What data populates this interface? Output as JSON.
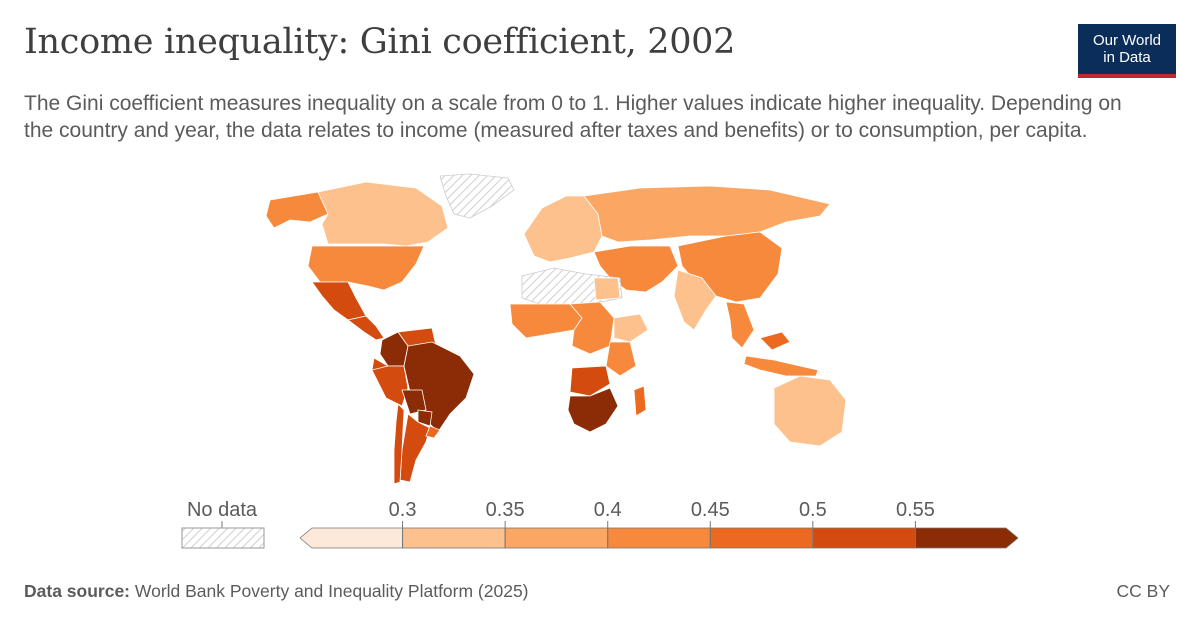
{
  "header": {
    "title": "Income inequality: Gini coefficient, 2002",
    "subtitle": "The Gini coefficient measures inequality on a scale from 0 to 1. Higher values indicate higher inequality. Depending on the country and year, the data relates to income (measured after taxes and benefits) or to consumption, per capita."
  },
  "logo": {
    "line1": "Our World",
    "line2": "in Data"
  },
  "legend": {
    "no_data_label": "No data",
    "ticks": [
      "0.3",
      "0.35",
      "0.4",
      "0.45",
      "0.5",
      "0.55"
    ],
    "colors": [
      "#fde9d9",
      "#fdc18e",
      "#fba763",
      "#f7893d",
      "#ec6a1f",
      "#d34b0e",
      "#8b2c06"
    ],
    "no_data_color": "#e0e0e0"
  },
  "map_data": {
    "type": "choropleth",
    "year": 2002,
    "metric": "Gini coefficient",
    "regions": [
      {
        "name": "Canada",
        "value": 0.33
      },
      {
        "name": "United States",
        "value": 0.41
      },
      {
        "name": "Mexico",
        "value": 0.5
      },
      {
        "name": "Central America",
        "value": 0.53
      },
      {
        "name": "Colombia",
        "value": 0.59
      },
      {
        "name": "Venezuela",
        "value": 0.52
      },
      {
        "name": "Ecuador",
        "value": 0.52
      },
      {
        "name": "Peru",
        "value": 0.53
      },
      {
        "name": "Brazil",
        "value": 0.59
      },
      {
        "name": "Bolivia",
        "value": 0.59
      },
      {
        "name": "Paraguay",
        "value": 0.56
      },
      {
        "name": "Argentina",
        "value": 0.52
      },
      {
        "name": "Chile",
        "value": 0.51
      },
      {
        "name": "Uruguay",
        "value": 0.46
      },
      {
        "name": "Russia",
        "value": 0.36
      },
      {
        "name": "Europe",
        "value": 0.31
      },
      {
        "name": "China",
        "value": 0.42
      },
      {
        "name": "India",
        "value": 0.33
      },
      {
        "name": "Middle East",
        "value": 0.4
      },
      {
        "name": "Egypt",
        "value": 0.32
      },
      {
        "name": "West Africa",
        "value": 0.4
      },
      {
        "name": "Central Africa",
        "value": 0.42
      },
      {
        "name": "Ethiopia",
        "value": 0.3
      },
      {
        "name": "East Africa",
        "value": 0.44
      },
      {
        "name": "Zambia",
        "value": 0.52
      },
      {
        "name": "Southern Africa",
        "value": 0.63
      },
      {
        "name": "South Africa",
        "value": 0.63
      },
      {
        "name": "Madagascar",
        "value": 0.47
      },
      {
        "name": "Southeast Asia",
        "value": 0.4
      },
      {
        "name": "Malaysia",
        "value": 0.46
      },
      {
        "name": "Indonesia",
        "value": 0.4
      },
      {
        "name": "Australia",
        "value": 0.33
      }
    ]
  },
  "footer": {
    "source_label": "Data source:",
    "source_text": "World Bank Poverty and Inequality Platform (2025)",
    "license": "CC BY"
  }
}
